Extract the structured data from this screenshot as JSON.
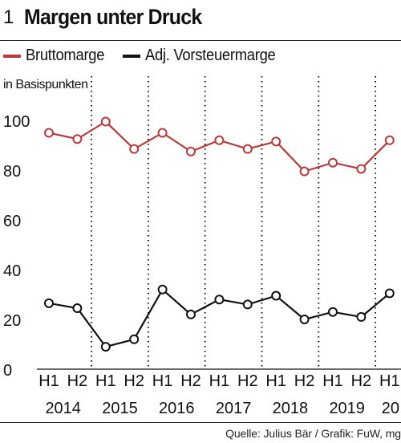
{
  "header": {
    "number": "1",
    "title": "Margen unter Druck"
  },
  "colors": {
    "brutto": "#b83a3a",
    "vorsteuer": "#111111",
    "grid": "#000000"
  },
  "source": "Quelle: Julius Bär / Grafik: FuW, mg",
  "chart_data": {
    "type": "line",
    "title": "Margen unter Druck",
    "unit_label": "in Basispunkten",
    "ylim": [
      0,
      100
    ],
    "yticks": [
      0,
      20,
      40,
      60,
      80,
      100
    ],
    "grid": "vertical dotted",
    "legend_position": "top",
    "categories": [
      "H1",
      "H2",
      "H1",
      "H2",
      "H1",
      "H2",
      "H1",
      "H2",
      "H1",
      "H2",
      "H1",
      "H2",
      "H1"
    ],
    "years": [
      "2014",
      "2015",
      "2016",
      "2017",
      "2018",
      "2019",
      "20"
    ],
    "series": [
      {
        "name": "Bruttomarge",
        "color": "#b83a3a",
        "values": [
          95,
          92.5,
          99.5,
          88.5,
          95,
          87.5,
          92,
          88.5,
          91.5,
          79.5,
          83,
          80.5,
          92
        ]
      },
      {
        "name": "Adj. Vorsteuermarge",
        "color": "#111111",
        "values": [
          26.5,
          24.5,
          9,
          12,
          32,
          22,
          28,
          26,
          29.5,
          20,
          23,
          21,
          30.5
        ]
      }
    ]
  }
}
